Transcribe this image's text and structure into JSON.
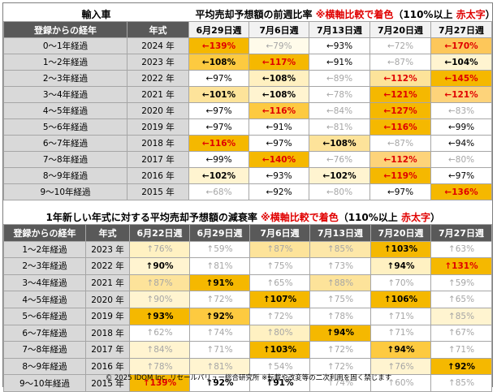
{
  "table1": {
    "left_title": "輸入車",
    "title_main": "平均売却予想額の前週比率 ",
    "title_note1": "※横軸比較で着色",
    "title_note2": "（110%以上 ",
    "title_note3": "赤太字",
    "title_note4": "）",
    "headers": [
      "登録からの経年",
      "年式",
      "6月29日週",
      "7月6日週",
      "7月13日週",
      "7月20日週",
      "7月27日週"
    ],
    "rows": [
      {
        "label": "0～1年経過",
        "year": "2024 年",
        "cells": [
          [
            "←139%",
            "#f5b800",
            "hl"
          ],
          [
            "←79%",
            "#fffbea",
            "faint"
          ],
          [
            "←93%",
            "#ffffff",
            "mid"
          ],
          [
            "←72%",
            "#ffffff",
            "faint"
          ],
          [
            "←170%",
            "#fdc75a",
            "hl"
          ]
        ]
      },
      {
        "label": "1～2年経過",
        "year": "2023 年",
        "cells": [
          [
            "←108%",
            "#fdca40",
            "big"
          ],
          [
            "←117%",
            "#f5b800",
            "hl"
          ],
          [
            "←91%",
            "#ffffff",
            "mid"
          ],
          [
            "←87%",
            "#ffffff",
            "faint"
          ],
          [
            "←104%",
            "#fff4d0",
            "big"
          ]
        ]
      },
      {
        "label": "2～3年経過",
        "year": "2022 年",
        "cells": [
          [
            "←97%",
            "#ffffff",
            "mid"
          ],
          [
            "←108%",
            "#fff0c0",
            "big"
          ],
          [
            "←89%",
            "#ffffff",
            "faint"
          ],
          [
            "←112%",
            "#fde39a",
            "hl"
          ],
          [
            "←145%",
            "#f5b800",
            "hl"
          ]
        ]
      },
      {
        "label": "3～4年経過",
        "year": "2021 年",
        "cells": [
          [
            "←101%",
            "#fde39a",
            "big"
          ],
          [
            "←108%",
            "#fff4d0",
            "big"
          ],
          [
            "←78%",
            "#ffffff",
            "faint"
          ],
          [
            "←121%",
            "#f5b800",
            "hl"
          ],
          [
            "←121%",
            "#fdd37a",
            "hl"
          ]
        ]
      },
      {
        "label": "4～5年経過",
        "year": "2020 年",
        "cells": [
          [
            "←97%",
            "#ffffff",
            "mid"
          ],
          [
            "←116%",
            "#fdca40",
            "hl"
          ],
          [
            "←84%",
            "#ffffff",
            "faint"
          ],
          [
            "←127%",
            "#f5b800",
            "hl"
          ],
          [
            "←83%",
            "#ffffff",
            "faint"
          ]
        ]
      },
      {
        "label": "5～6年経過",
        "year": "2019 年",
        "cells": [
          [
            "←97%",
            "#ffffff",
            "mid"
          ],
          [
            "←91%",
            "#ffffff",
            "mid"
          ],
          [
            "←81%",
            "#ffffff",
            "faint"
          ],
          [
            "←116%",
            "#f5b800",
            "hl"
          ],
          [
            "←99%",
            "#ffffff",
            "mid"
          ]
        ]
      },
      {
        "label": "6～7年経過",
        "year": "2018 年",
        "cells": [
          [
            "←116%",
            "#f5b800",
            "hl"
          ],
          [
            "←97%",
            "#ffffff",
            "mid"
          ],
          [
            "←108%",
            "#fde39a",
            "big"
          ],
          [
            "←87%",
            "#ffffff",
            "faint"
          ],
          [
            "←94%",
            "#ffffff",
            "mid"
          ]
        ]
      },
      {
        "label": "7～8年経過",
        "year": "2017 年",
        "cells": [
          [
            "←99%",
            "#ffffff",
            "mid"
          ],
          [
            "←140%",
            "#f5b800",
            "hl"
          ],
          [
            "←76%",
            "#ffffff",
            "faint"
          ],
          [
            "←112%",
            "#fdd37a",
            "hl"
          ],
          [
            "←80%",
            "#ffffff",
            "faint"
          ]
        ]
      },
      {
        "label": "8～9年経過",
        "year": "2016 年",
        "cells": [
          [
            "←102%",
            "#fff4d0",
            "big"
          ],
          [
            "←93%",
            "#ffffff",
            "mid"
          ],
          [
            "←102%",
            "#fff4d0",
            "big"
          ],
          [
            "←119%",
            "#f5b800",
            "hl"
          ],
          [
            "←97%",
            "#ffffff",
            "mid"
          ]
        ]
      },
      {
        "label": "9～10年経過",
        "year": "2015 年",
        "cells": [
          [
            "←68%",
            "#ffffff",
            "faint"
          ],
          [
            "←92%",
            "#ffffff",
            "mid"
          ],
          [
            "←80%",
            "#ffffff",
            "faint"
          ],
          [
            "←97%",
            "#ffffff",
            "mid"
          ],
          [
            "←136%",
            "#f5b800",
            "hl"
          ]
        ]
      }
    ]
  },
  "table2": {
    "title_main": "1年新しい年式に対する平均売却予想額の減衰率 ",
    "title_note1": "※横軸比較で着色",
    "title_note2": "（110%以上 ",
    "title_note3": "赤太字",
    "title_note4": "）",
    "headers": [
      "登録からの経年",
      "年式",
      "6月22日週",
      "6月29日週",
      "7月6日週",
      "7月13日週",
      "7月20日週",
      "7月27日週"
    ],
    "rows": [
      {
        "label": "1～2年経過",
        "year": "2023 年",
        "cells": [
          [
            "↑76%",
            "#fff1c2",
            "faint"
          ],
          [
            "↑59%",
            "#ffffff",
            "faint"
          ],
          [
            "↑87%",
            "#fde39a",
            "faint"
          ],
          [
            "↑85%",
            "#fde7a8",
            "faint"
          ],
          [
            "↑103%",
            "#f5b800",
            "big"
          ],
          [
            "↑63%",
            "#ffffff",
            "faint"
          ]
        ]
      },
      {
        "label": "2～3年経過",
        "year": "2022 年",
        "cells": [
          [
            "↑90%",
            "#fff4d0",
            "big"
          ],
          [
            "↑81%",
            "#ffffff",
            "faint"
          ],
          [
            "↑75%",
            "#ffffff",
            "faint"
          ],
          [
            "↑73%",
            "#ffffff",
            "faint"
          ],
          [
            "↑94%",
            "#fff1c2",
            "big"
          ],
          [
            "↑131%",
            "#f5b800",
            "hl"
          ]
        ]
      },
      {
        "label": "3～4年経過",
        "year": "2021 年",
        "cells": [
          [
            "↑87%",
            "#fde39a",
            "faint"
          ],
          [
            "↑91%",
            "#f5b800",
            "big"
          ],
          [
            "↑65%",
            "#ffffff",
            "faint"
          ],
          [
            "↑88%",
            "#fde39a",
            "faint"
          ],
          [
            "↑70%",
            "#ffffff",
            "faint"
          ],
          [
            "↑59%",
            "#ffffff",
            "faint"
          ]
        ]
      },
      {
        "label": "4～5年経過",
        "year": "2020 年",
        "cells": [
          [
            "↑90%",
            "#fff4d0",
            "faint"
          ],
          [
            "↑72%",
            "#ffffff",
            "faint"
          ],
          [
            "↑107%",
            "#f5b800",
            "big"
          ],
          [
            "↑75%",
            "#ffffff",
            "faint"
          ],
          [
            "↑106%",
            "#f5b800",
            "big"
          ],
          [
            "↑65%",
            "#ffffff",
            "faint"
          ]
        ]
      },
      {
        "label": "5～6年経過",
        "year": "2019 年",
        "cells": [
          [
            "↑93%",
            "#f5b800",
            "big"
          ],
          [
            "↑92%",
            "#fdca40",
            "big"
          ],
          [
            "↑72%",
            "#ffffff",
            "faint"
          ],
          [
            "↑78%",
            "#ffffff",
            "faint"
          ],
          [
            "↑71%",
            "#ffffff",
            "faint"
          ],
          [
            "↑85%",
            "#fff4d0",
            "faint"
          ]
        ]
      },
      {
        "label": "6～7年経過",
        "year": "2018 年",
        "cells": [
          [
            "↑62%",
            "#ffffff",
            "faint"
          ],
          [
            "↑74%",
            "#ffffff",
            "faint"
          ],
          [
            "↑80%",
            "#fff1c2",
            "faint"
          ],
          [
            "↑94%",
            "#f5b800",
            "big"
          ],
          [
            "↑71%",
            "#ffffff",
            "faint"
          ],
          [
            "↑67%",
            "#ffffff",
            "faint"
          ]
        ]
      },
      {
        "label": "7～8年経過",
        "year": "2017 年",
        "cells": [
          [
            "↑84%",
            "#fff4d0",
            "faint"
          ],
          [
            "↑71%",
            "#ffffff",
            "faint"
          ],
          [
            "↑103%",
            "#f5b800",
            "big"
          ],
          [
            "↑72%",
            "#ffffff",
            "faint"
          ],
          [
            "↑94%",
            "#fdca40",
            "big"
          ],
          [
            "↑71%",
            "#ffffff",
            "faint"
          ]
        ]
      },
      {
        "label": "8～9年経過",
        "year": "2016 年",
        "cells": [
          [
            "↑78%",
            "#fff4d0",
            "faint"
          ],
          [
            "↑81%",
            "#fff4d0",
            "faint"
          ],
          [
            "↑54%",
            "#ffffff",
            "faint"
          ],
          [
            "↑72%",
            "#ffffff",
            "faint"
          ],
          [
            "↑76%",
            "#fff4d0",
            "faint"
          ],
          [
            "↑92%",
            "#f5b800",
            "big"
          ]
        ]
      },
      {
        "label": "9～10年経過",
        "year": "2015 年",
        "cells": [
          [
            "↑139%",
            "#f5b800",
            "hl"
          ],
          [
            "↑92%",
            "#ffffff",
            "big"
          ],
          [
            "↑91%",
            "#ffffff",
            "big"
          ],
          [
            "↑74%",
            "#ffffff",
            "faint"
          ],
          [
            "↑60%",
            "#ffffff",
            "faint"
          ],
          [
            "↑85%",
            "#ffffff",
            "faint"
          ]
        ]
      }
    ]
  },
  "footer": "© 2025 IDOM Inc. リセールバリュー総合研究所 ※転載や改変等の二次利用を固く禁じます",
  "colors": {
    "header_dark": "#595959",
    "label_gray": "#d9d9d9",
    "highlight_red": "#e00000",
    "accent_orange": "#f5b800"
  }
}
